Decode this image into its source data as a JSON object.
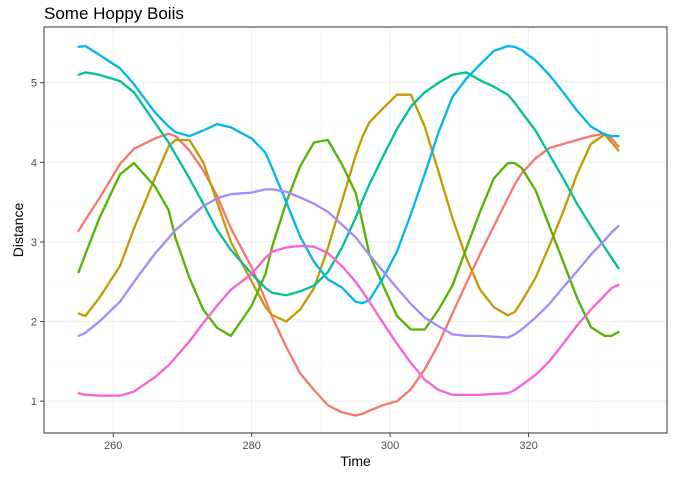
{
  "chart_data": {
    "type": "line",
    "title": "Some Hoppy Boiis",
    "xlabel": "Time",
    "ylabel": "Distance",
    "xlim": [
      250,
      340
    ],
    "ylim": [
      0.6,
      5.7
    ],
    "x_ticks": [
      260,
      280,
      300,
      320
    ],
    "y_ticks": [
      1,
      2,
      3,
      4,
      5
    ],
    "grid": true,
    "legend": "none",
    "x": [
      255,
      256,
      258,
      261,
      263,
      266,
      268,
      269,
      271,
      273,
      275,
      277,
      280,
      282,
      283,
      285,
      287,
      289,
      291,
      293,
      295,
      296,
      297,
      299,
      301,
      303,
      305,
      307,
      309,
      311,
      313,
      315,
      317,
      318,
      319,
      321,
      323,
      325,
      327,
      329,
      331,
      332,
      333
    ],
    "series": [
      {
        "color": "#F8766D",
        "values": [
          3.14,
          3.28,
          3.55,
          3.98,
          4.17,
          4.3,
          4.36,
          4.33,
          4.15,
          3.9,
          3.58,
          3.17,
          2.68,
          2.27,
          2.05,
          1.68,
          1.35,
          1.14,
          0.95,
          0.86,
          0.82,
          0.84,
          0.88,
          0.95,
          1.0,
          1.15,
          1.4,
          1.72,
          2.1,
          2.48,
          2.85,
          3.2,
          3.55,
          3.72,
          3.86,
          4.05,
          4.18,
          4.23,
          4.28,
          4.33,
          4.36,
          4.3,
          4.2
        ]
      },
      {
        "color": "#C49A00",
        "values": [
          2.1,
          2.07,
          2.3,
          2.7,
          3.17,
          3.8,
          4.2,
          4.28,
          4.28,
          4.0,
          3.5,
          3.0,
          2.5,
          2.18,
          2.08,
          2.0,
          2.15,
          2.42,
          2.92,
          3.5,
          4.08,
          4.32,
          4.5,
          4.68,
          4.85,
          4.85,
          4.45,
          3.88,
          3.3,
          2.8,
          2.4,
          2.18,
          2.08,
          2.12,
          2.25,
          2.55,
          2.95,
          3.38,
          3.85,
          4.23,
          4.35,
          4.25,
          4.15
        ]
      },
      {
        "color": "#53B400",
        "values": [
          2.62,
          2.85,
          3.3,
          3.85,
          3.99,
          3.7,
          3.4,
          3.05,
          2.55,
          2.15,
          1.92,
          1.82,
          2.2,
          2.6,
          2.95,
          3.5,
          3.95,
          4.25,
          4.28,
          3.98,
          3.62,
          3.25,
          2.85,
          2.45,
          2.07,
          1.9,
          1.9,
          2.15,
          2.45,
          2.92,
          3.38,
          3.8,
          3.99,
          3.99,
          3.93,
          3.65,
          3.2,
          2.75,
          2.3,
          1.93,
          1.82,
          1.82,
          1.87
        ]
      },
      {
        "color": "#00C094",
        "values": [
          5.1,
          5.13,
          5.1,
          5.02,
          4.88,
          4.5,
          4.25,
          4.1,
          3.8,
          3.48,
          3.15,
          2.9,
          2.6,
          2.42,
          2.36,
          2.33,
          2.38,
          2.45,
          2.62,
          2.92,
          3.3,
          3.52,
          3.72,
          4.08,
          4.42,
          4.7,
          4.88,
          5.0,
          5.1,
          5.13,
          5.03,
          4.95,
          4.85,
          4.75,
          4.63,
          4.4,
          4.1,
          3.8,
          3.48,
          3.2,
          2.93,
          2.8,
          2.67
        ]
      },
      {
        "color": "#00B6EB",
        "values": [
          5.45,
          5.46,
          5.35,
          5.18,
          4.98,
          4.63,
          4.45,
          4.38,
          4.33,
          4.4,
          4.48,
          4.44,
          4.3,
          4.12,
          3.92,
          3.5,
          3.07,
          2.75,
          2.53,
          2.43,
          2.25,
          2.23,
          2.27,
          2.55,
          2.88,
          3.35,
          3.85,
          4.38,
          4.82,
          5.05,
          5.23,
          5.4,
          5.46,
          5.45,
          5.41,
          5.28,
          5.1,
          4.88,
          4.65,
          4.45,
          4.35,
          4.33,
          4.33
        ]
      },
      {
        "color": "#A58AFF",
        "values": [
          1.82,
          1.86,
          2.0,
          2.25,
          2.5,
          2.85,
          3.05,
          3.15,
          3.3,
          3.45,
          3.55,
          3.6,
          3.62,
          3.66,
          3.66,
          3.63,
          3.56,
          3.48,
          3.38,
          3.22,
          3.06,
          2.95,
          2.84,
          2.63,
          2.42,
          2.22,
          2.05,
          1.94,
          1.84,
          1.82,
          1.82,
          1.81,
          1.8,
          1.84,
          1.9,
          2.05,
          2.22,
          2.43,
          2.63,
          2.84,
          3.02,
          3.12,
          3.2
        ]
      },
      {
        "color": "#FB61D7",
        "values": [
          1.1,
          1.08,
          1.07,
          1.07,
          1.12,
          1.3,
          1.45,
          1.55,
          1.75,
          1.98,
          2.2,
          2.4,
          2.6,
          2.8,
          2.88,
          2.93,
          2.95,
          2.94,
          2.86,
          2.7,
          2.5,
          2.38,
          2.25,
          1.98,
          1.72,
          1.48,
          1.27,
          1.14,
          1.08,
          1.08,
          1.08,
          1.09,
          1.1,
          1.14,
          1.2,
          1.33,
          1.5,
          1.72,
          1.95,
          2.15,
          2.33,
          2.42,
          2.46
        ]
      }
    ]
  }
}
